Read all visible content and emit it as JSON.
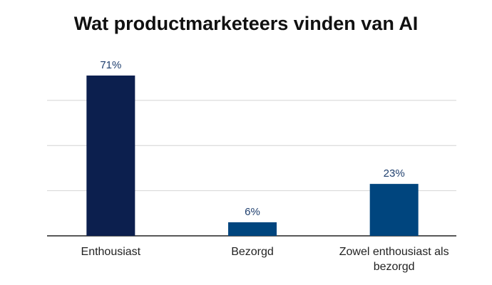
{
  "chart_data": {
    "type": "bar",
    "title": "Wat productmarketeers vinden van AI",
    "categories": [
      "Enthousiast",
      "Bezorgd",
      "Zowel enthousiast als bezorgd"
    ],
    "values": [
      71,
      6,
      23
    ],
    "value_labels": [
      "71%",
      "6%",
      "23%"
    ],
    "colors": [
      "#0c1f4e",
      "#00457e",
      "#00457e"
    ],
    "ylim": [
      0,
      80
    ],
    "yticks": [
      0,
      20,
      40,
      60
    ],
    "grid": true
  }
}
